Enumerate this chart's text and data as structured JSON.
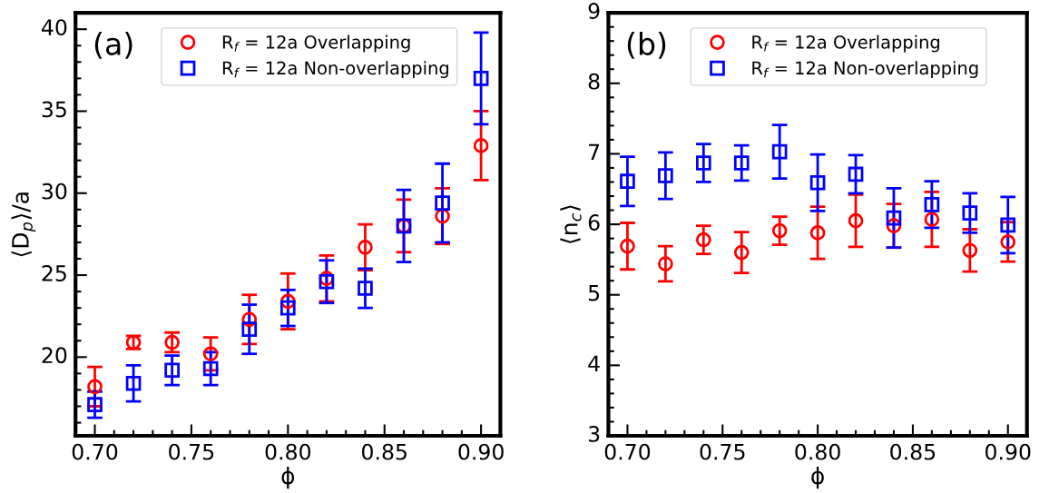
{
  "chart_data": [
    {
      "type": "scatter",
      "title": null,
      "annotations": [
        "(a)"
      ],
      "xlabel": "ϕ",
      "ylabel": "⟨D$_{p}$⟩/a",
      "x": [
        0.7,
        0.72,
        0.74,
        0.76,
        0.78,
        0.8,
        0.82,
        0.84,
        0.86,
        0.88,
        0.9
      ],
      "series": [
        {
          "name": "R$_{f}$ = 12a Overlapping",
          "color": "#ff0000",
          "marker": "circle",
          "values": [
            18.2,
            20.9,
            20.9,
            20.2,
            22.3,
            23.4,
            24.8,
            26.7,
            28.0,
            28.6,
            32.9
          ],
          "errors": [
            1.2,
            0.4,
            0.6,
            1.0,
            1.5,
            1.7,
            1.4,
            1.4,
            1.6,
            1.7,
            2.1
          ]
        },
        {
          "name": "R$_{f}$ = 12a Non-overlapping",
          "color": "#0000ff",
          "marker": "square",
          "values": [
            17.1,
            18.4,
            19.2,
            19.3,
            21.7,
            23.0,
            24.6,
            24.2,
            28.0,
            29.4,
            37.0
          ],
          "errors": [
            0.8,
            1.1,
            0.9,
            1.0,
            1.5,
            1.1,
            1.3,
            1.2,
            2.2,
            2.4,
            2.8
          ]
        }
      ],
      "xlim": [
        0.69,
        0.91
      ],
      "xticks": [
        {
          "value": 0.7,
          "label": "0.70"
        },
        {
          "value": 0.75,
          "label": "0.75"
        },
        {
          "value": 0.8,
          "label": "0.80"
        },
        {
          "value": 0.85,
          "label": "0.85"
        },
        {
          "value": 0.9,
          "label": "0.90"
        }
      ],
      "ylim": [
        15.2,
        41
      ],
      "yticks": [
        20,
        25,
        30,
        35,
        40
      ],
      "legend": "top",
      "grid": false
    },
    {
      "type": "scatter",
      "annotations": [
        "(b)"
      ],
      "xlabel": "ϕ",
      "ylabel": "⟨n$_{c}$⟩",
      "x": [
        0.7,
        0.72,
        0.74,
        0.76,
        0.78,
        0.8,
        0.82,
        0.84,
        0.86,
        0.88,
        0.9
      ],
      "series": [
        {
          "name": "R$_{f}$ = 12a Overlapping",
          "color": "#ff0000",
          "marker": "circle",
          "values": [
            5.69,
            5.44,
            5.78,
            5.6,
            5.91,
            5.88,
            6.05,
            5.98,
            6.07,
            5.63,
            5.75
          ],
          "errors": [
            0.33,
            0.25,
            0.2,
            0.29,
            0.2,
            0.37,
            0.37,
            0.31,
            0.39,
            0.3,
            0.28
          ]
        },
        {
          "name": "R$_{f}$ = 12a Non-overlapping",
          "color": "#0000ff",
          "marker": "square",
          "values": [
            6.61,
            6.69,
            6.87,
            6.87,
            7.03,
            6.59,
            6.71,
            6.09,
            6.28,
            6.16,
            5.99
          ],
          "errors": [
            0.35,
            0.33,
            0.27,
            0.25,
            0.38,
            0.4,
            0.27,
            0.42,
            0.33,
            0.28,
            0.4
          ]
        }
      ],
      "xlim": [
        0.69,
        0.91
      ],
      "xticks": [
        {
          "value": 0.7,
          "label": "0.70"
        },
        {
          "value": 0.75,
          "label": "0.75"
        },
        {
          "value": 0.8,
          "label": "0.80"
        },
        {
          "value": 0.85,
          "label": "0.85"
        },
        {
          "value": 0.9,
          "label": "0.90"
        }
      ],
      "ylim": [
        3,
        9
      ],
      "yticks": [
        3,
        4,
        5,
        6,
        7,
        8,
        9
      ],
      "legend": "top",
      "grid": false
    }
  ]
}
